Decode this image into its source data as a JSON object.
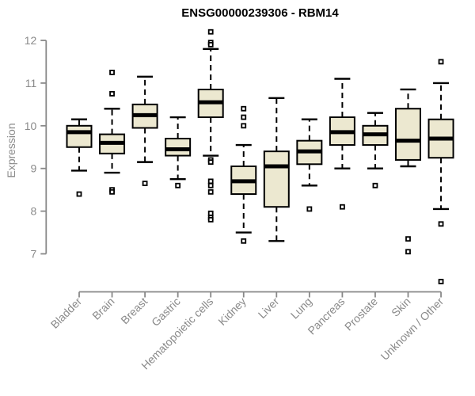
{
  "chart_data": {
    "type": "boxplot",
    "title": "ENSG00000239306 - RBM14",
    "ylabel": "Expression",
    "xlabel": "",
    "ylim": [
      6.2,
      12.35
    ],
    "yticks": [
      7,
      8,
      9,
      10,
      11,
      12
    ],
    "y_axis_range_drawn": [
      7,
      12
    ],
    "grid": false,
    "x_tick_rotation_deg": 45,
    "categories": [
      "Bladder",
      "Brain",
      "Breast",
      "Gastric",
      "Hematopoietic cells",
      "Kidney",
      "Liver",
      "Lung",
      "Pancreas",
      "Prostate",
      "Skin",
      "Unknown / Other"
    ],
    "boxes": [
      {
        "category": "Bladder",
        "whisker_low": 8.95,
        "q1": 9.5,
        "median": 9.85,
        "q3": 10.0,
        "whisker_high": 10.15,
        "outliers": [
          8.4
        ]
      },
      {
        "category": "Brain",
        "whisker_low": 8.9,
        "q1": 9.35,
        "median": 9.6,
        "q3": 9.8,
        "whisker_high": 10.4,
        "outliers": [
          11.25,
          10.75,
          8.5,
          8.45
        ]
      },
      {
        "category": "Breast",
        "whisker_low": 9.15,
        "q1": 9.95,
        "median": 10.25,
        "q3": 10.5,
        "whisker_high": 11.15,
        "outliers": [
          8.65
        ]
      },
      {
        "category": "Gastric",
        "whisker_low": 8.75,
        "q1": 9.3,
        "median": 9.45,
        "q3": 9.7,
        "whisker_high": 10.2,
        "outliers": [
          8.6
        ]
      },
      {
        "category": "Hematopoietic cells",
        "whisker_low": 9.3,
        "q1": 10.2,
        "median": 10.55,
        "q3": 10.85,
        "whisker_high": 11.8,
        "outliers": [
          12.2,
          11.95,
          11.9,
          9.2,
          9.15,
          8.7,
          8.6,
          8.45,
          7.95,
          7.85,
          7.8
        ]
      },
      {
        "category": "Kidney",
        "whisker_low": 7.5,
        "q1": 8.4,
        "median": 8.7,
        "q3": 9.05,
        "whisker_high": 9.55,
        "outliers": [
          10.4,
          10.2,
          10.0,
          7.3
        ]
      },
      {
        "category": "Liver",
        "whisker_low": 7.3,
        "q1": 8.1,
        "median": 9.05,
        "q3": 9.4,
        "whisker_high": 10.65,
        "outliers": []
      },
      {
        "category": "Lung",
        "whisker_low": 8.6,
        "q1": 9.1,
        "median": 9.4,
        "q3": 9.65,
        "whisker_high": 10.15,
        "outliers": [
          8.05
        ]
      },
      {
        "category": "Pancreas",
        "whisker_low": 9.0,
        "q1": 9.55,
        "median": 9.85,
        "q3": 10.2,
        "whisker_high": 11.1,
        "outliers": [
          8.1
        ]
      },
      {
        "category": "Prostate",
        "whisker_low": 9.0,
        "q1": 9.55,
        "median": 9.8,
        "q3": 10.0,
        "whisker_high": 10.3,
        "outliers": [
          8.6
        ]
      },
      {
        "category": "Skin",
        "whisker_low": 9.05,
        "q1": 9.2,
        "median": 9.65,
        "q3": 10.4,
        "whisker_high": 10.85,
        "outliers": [
          7.35,
          7.05
        ]
      },
      {
        "category": "Unknown / Other",
        "whisker_low": 8.05,
        "q1": 9.25,
        "median": 9.7,
        "q3": 10.15,
        "whisker_high": 11.0,
        "outliers": [
          11.5,
          7.7,
          6.35
        ]
      }
    ],
    "colors": {
      "box_fill": "#ECE8D0",
      "box_border": "#000000",
      "median_line": "#000000",
      "whisker": "#000000",
      "outlier": "#000000",
      "axis_line": "#888888",
      "tick_label": "#8a8a8a",
      "title_text": "#000000"
    }
  }
}
